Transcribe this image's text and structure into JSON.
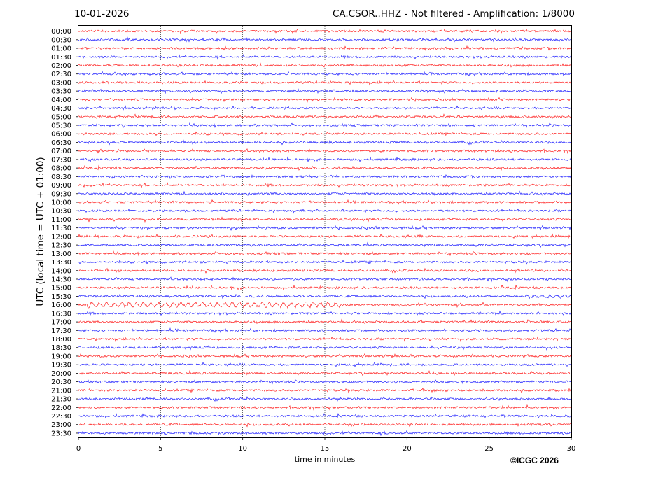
{
  "header": {
    "date": "10-01-2026",
    "title": "CA.CSOR..HHZ - Not filtered - Amplification: 1/8000"
  },
  "footer": {
    "copyright": "©ICGC 2026"
  },
  "chart_data": {
    "type": "line",
    "title": "CA.CSOR..HHZ - Not filtered - Amplification: 1/8000",
    "xlabel": "time in minutes",
    "ylabel": "UTC (local time = UTC + 01:00)",
    "xlim": [
      0,
      30
    ],
    "x_ticks": [
      "0",
      "5",
      "10",
      "15",
      "20",
      "25",
      "30"
    ],
    "grid": "vertical dotted lines at x = 5, 10, 15, 20, 25",
    "row_labels": [
      "00:00",
      "00:30",
      "01:00",
      "01:30",
      "02:00",
      "02:30",
      "03:00",
      "03:30",
      "04:00",
      "04:30",
      "05:00",
      "05:30",
      "06:00",
      "06:30",
      "07:00",
      "07:30",
      "08:00",
      "08:30",
      "09:00",
      "09:30",
      "10:00",
      "10:30",
      "11:00",
      "11:30",
      "12:00",
      "12:30",
      "13:00",
      "13:30",
      "14:00",
      "14:30",
      "15:00",
      "15:30",
      "16:00",
      "16:30",
      "17:00",
      "17:30",
      "18:00",
      "18:30",
      "19:00",
      "19:30",
      "20:00",
      "20:30",
      "21:00",
      "21:30",
      "22:00",
      "22:30",
      "23:00",
      "23:30"
    ],
    "colors": {
      "even_rows": "#ff0000",
      "odd_rows": "#0000ff",
      "grid": "#000000"
    },
    "events": [
      {
        "row": "16:00",
        "start_min": 0.5,
        "end_min": 16.0,
        "description": "low-frequency oscillation",
        "relative_amplitude": 3
      },
      {
        "row": "15:30",
        "start_min": 27.0,
        "end_min": 30.0,
        "description": "slightly elevated noise",
        "relative_amplitude": 1.5
      }
    ]
  }
}
